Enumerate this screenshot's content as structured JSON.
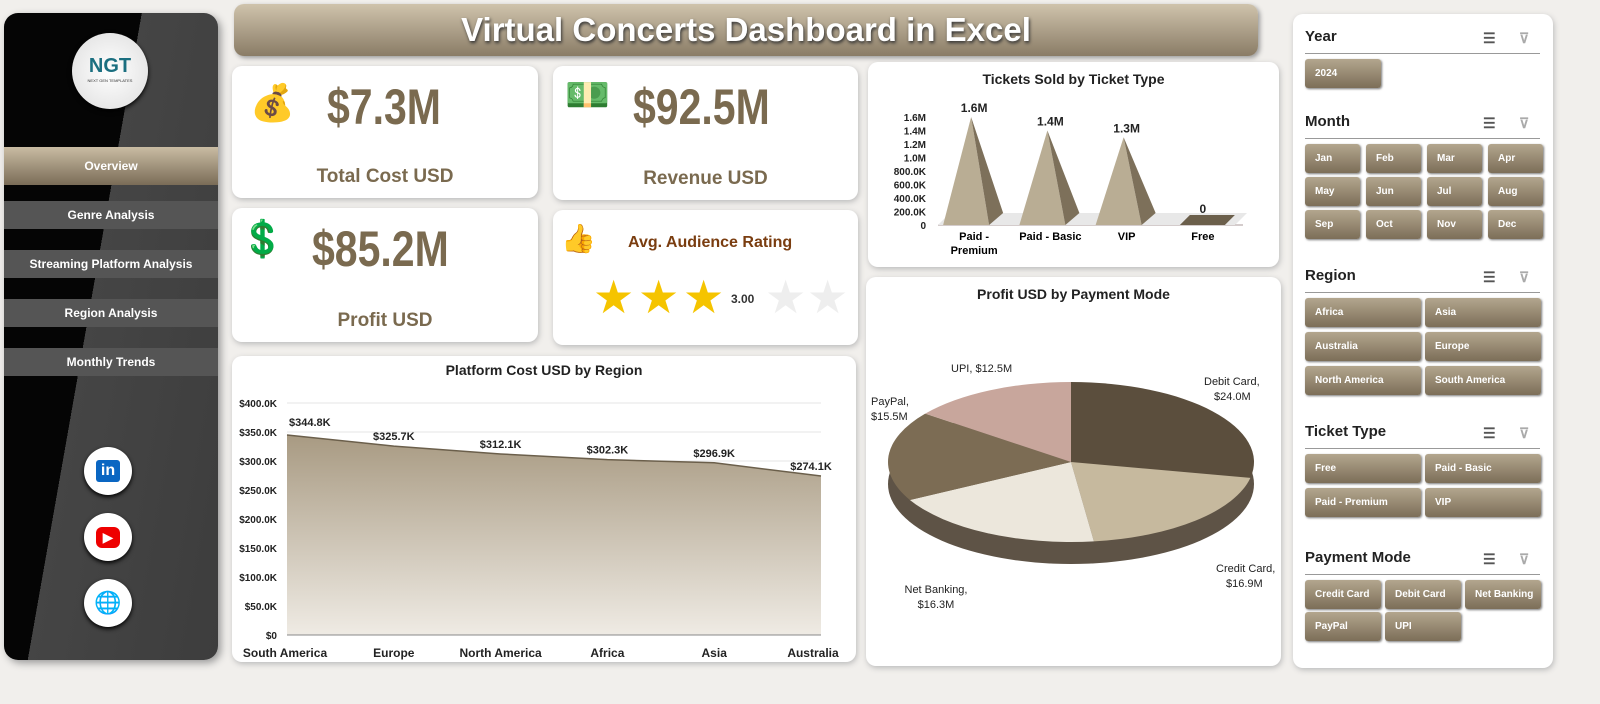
{
  "title": "Virtual Concerts Dashboard in Excel",
  "logo": {
    "text": "NGT",
    "sub": "NEXT GEN TEMPLATES"
  },
  "nav": [
    {
      "label": "Overview"
    },
    {
      "label": "Genre Analysis"
    },
    {
      "label": "Streaming Platform Analysis"
    },
    {
      "label": "Region Analysis"
    },
    {
      "label": "Monthly Trends"
    }
  ],
  "social": [
    {
      "icon": "linkedin-icon",
      "label": "in"
    },
    {
      "icon": "youtube-icon",
      "label": "▶"
    },
    {
      "icon": "globe-icon",
      "label": "🌐"
    }
  ],
  "kpis": {
    "total_cost": {
      "value": "$7.3M",
      "label": "Total Cost USD"
    },
    "revenue": {
      "value": "$92.5M",
      "label": "Revenue USD"
    },
    "profit": {
      "value": "$85.2M",
      "label": "Profit USD"
    },
    "rating": {
      "label": "Avg. Audience Rating",
      "value": "3.00",
      "stars": 3,
      "max": 5
    }
  },
  "chart_data": [
    {
      "type": "bar",
      "title": "Tickets Sold by Ticket Type",
      "categories": [
        "Paid - Premium",
        "Paid - Basic",
        "VIP",
        "Free"
      ],
      "values": [
        1600000,
        1400000,
        1300000,
        0
      ],
      "data_labels": [
        "1.6M",
        "1.4M",
        "1.3M",
        "0"
      ],
      "yticks": [
        "0",
        "200.0K",
        "400.0K",
        "600.0K",
        "800.0K",
        "1.0M",
        "1.2M",
        "1.4M",
        "1.6M"
      ],
      "ylim": [
        0,
        1600000
      ]
    },
    {
      "type": "area",
      "title": "Platform Cost USD by Region",
      "categories": [
        "South America",
        "Europe",
        "North America",
        "Africa",
        "Asia",
        "Australia"
      ],
      "values": [
        344.8,
        325.7,
        312.1,
        302.3,
        296.9,
        274.1
      ],
      "data_labels": [
        "$344.8K",
        "$325.7K",
        "$312.1K",
        "$302.3K",
        "$296.9K",
        "$274.1K"
      ],
      "yticks": [
        "$0",
        "$50.0K",
        "$100.0K",
        "$150.0K",
        "$200.0K",
        "$250.0K",
        "$300.0K",
        "$350.0K",
        "$400.0K"
      ],
      "ylim": [
        0,
        400
      ]
    },
    {
      "type": "pie",
      "title": "Profit USD by Payment Mode",
      "slices": [
        {
          "name": "Debit Card",
          "value": 24.0,
          "label": "Debit Card,",
          "val": "$24.0M",
          "color": "#5b4e3d"
        },
        {
          "name": "Credit Card",
          "value": 16.9,
          "label": "Credit Card,",
          "val": "$16.9M",
          "color": "#c6b99e"
        },
        {
          "name": "Net Banking",
          "value": 16.3,
          "label": "Net Banking,",
          "val": "$16.3M",
          "color": "#ece7dc"
        },
        {
          "name": "PayPal",
          "value": 15.5,
          "label": "PayPal,",
          "val": "$15.5M",
          "color": "#7c6c54"
        },
        {
          "name": "UPI",
          "value": 12.5,
          "label": "UPI, $12.5M",
          "val": "",
          "color": "#c8a69c"
        }
      ]
    }
  ],
  "slicers": [
    {
      "title": "Year",
      "items": [
        "2024"
      ]
    },
    {
      "title": "Month",
      "items": [
        "Jan",
        "Feb",
        "Mar",
        "Apr",
        "May",
        "Jun",
        "Jul",
        "Aug",
        "Sep",
        "Oct",
        "Nov",
        "Dec"
      ]
    },
    {
      "title": "Region",
      "items": [
        "Africa",
        "Asia",
        "Australia",
        "Europe",
        "North America",
        "South America"
      ]
    },
    {
      "title": "Ticket Type",
      "items": [
        "Free",
        "Paid - Basic",
        "Paid - Premium",
        "VIP"
      ]
    },
    {
      "title": "Payment Mode",
      "items": [
        "Credit Card",
        "Debit Card",
        "Net Banking",
        "PayPal",
        "UPI"
      ]
    }
  ]
}
